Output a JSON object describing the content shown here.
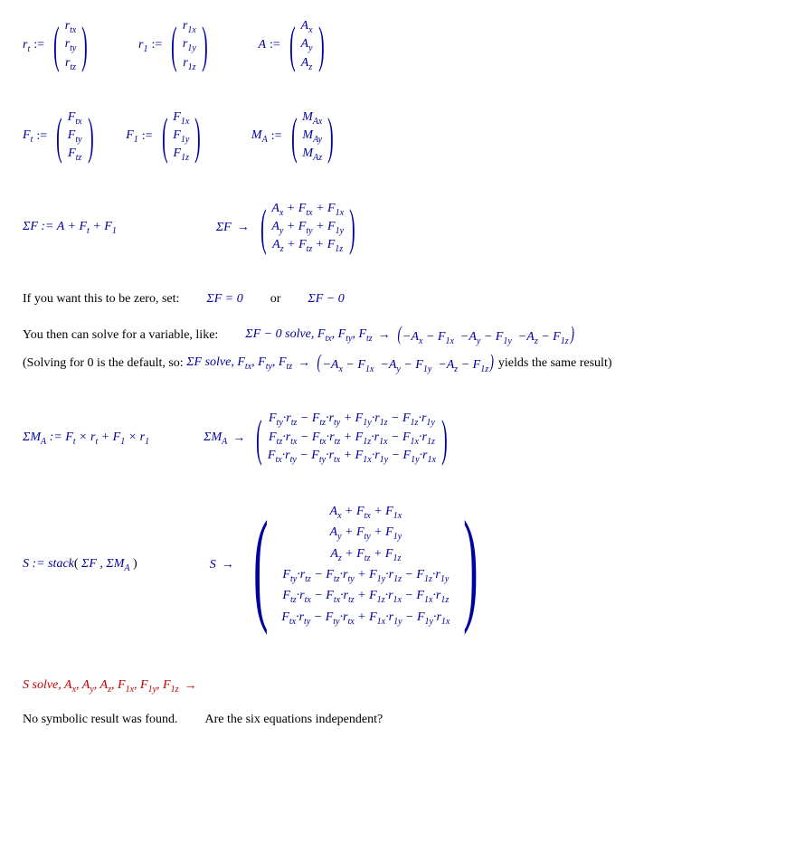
{
  "defs_row1": {
    "rt": {
      "lhs": "r",
      "lsub": "t",
      "rows": [
        "r<sub class='sub'>tx</sub>",
        "r<sub class='sub'>ty</sub>",
        "r<sub class='sub'>tz</sub>"
      ]
    },
    "r1": {
      "lhs": "r",
      "lsub": "1",
      "rows": [
        "r<sub class='sub'>1x</sub>",
        "r<sub class='sub'>1y</sub>",
        "r<sub class='sub'>1z</sub>"
      ]
    },
    "A": {
      "lhs": "A",
      "lsub": "",
      "rows": [
        "A<sub class='sub'>x</sub>",
        "A<sub class='sub'>y</sub>",
        "A<sub class='sub'>z</sub>"
      ]
    }
  },
  "defs_row2": {
    "Ft": {
      "lhs": "F",
      "lsub": "t",
      "rows": [
        "F<sub class='sub'>tx</sub>",
        "F<sub class='sub'>ty</sub>",
        "F<sub class='sub'>tz</sub>"
      ]
    },
    "F1": {
      "lhs": "F",
      "lsub": "1",
      "rows": [
        "F<sub class='sub'>1x</sub>",
        "F<sub class='sub'>1y</sub>",
        "F<sub class='sub'>1z</sub>"
      ]
    },
    "MA": {
      "lhs": "M",
      "lsub": "A",
      "rows": [
        "M<sub class='sub'>Ax</sub>",
        "M<sub class='sub'>Ay</sub>",
        "M<sub class='sub'>Az</sub>"
      ]
    }
  },
  "sumF": {
    "def": "ΣF := A + F<sub class='sub'>t</sub> + F<sub class='sub'>1</sub>",
    "result_lhs": "ΣF",
    "rows": [
      "A<sub class='sub'>x</sub> + F<sub class='sub'>tx</sub> + F<sub class='sub'>1x</sub>",
      "A<sub class='sub'>y</sub> + F<sub class='sub'>ty</sub> + F<sub class='sub'>1y</sub>",
      "A<sub class='sub'>z</sub> + F<sub class='sub'>tz</sub> + F<sub class='sub'>1z</sub>"
    ]
  },
  "zero_text": "If you want this to be zero, set:",
  "zero_eq": "ΣF = 0",
  "or_text": "or",
  "zero_alt": "ΣF − 0",
  "solve_intro": "You then can solve for a variable, like:",
  "solve_expr": "ΣF − 0 solve, F<sub class='sub'>tx</sub>, F<sub class='sub'>ty</sub>, F<sub class='sub'>tz</sub>",
  "solve_result": "−A<sub class='sub'>x</sub> − F<sub class='sub'>1x</sub>&nbsp;&nbsp;−A<sub class='sub'>y</sub> − F<sub class='sub'>1y</sub>&nbsp;&nbsp;−A<sub class='sub'>z</sub> − F<sub class='sub'>1z</sub>",
  "solve_paren_pre": "(Solving for 0 is the default, so:",
  "solve_expr2": "ΣF solve, F<sub class='sub'>tx</sub>, F<sub class='sub'>ty</sub>, F<sub class='sub'>tz</sub>",
  "solve_paren_post": "yields the same result)",
  "sumMA": {
    "def": "ΣM<sub class='sub'>A</sub> := F<sub class='sub'>t</sub> × r<sub class='sub'>t</sub> + F<sub class='sub'>1</sub> × r<sub class='sub'>1</sub>",
    "result_lhs": "ΣM<sub class='sub'>A</sub>",
    "rows": [
      "F<sub class='sub'>ty</sub>·r<sub class='sub'>tz</sub> − F<sub class='sub'>tz</sub>·r<sub class='sub'>ty</sub> + F<sub class='sub'>1y</sub>·r<sub class='sub'>1z</sub> − F<sub class='sub'>1z</sub>·r<sub class='sub'>1y</sub>",
      "F<sub class='sub'>tz</sub>·r<sub class='sub'>tx</sub> − F<sub class='sub'>tx</sub>·r<sub class='sub'>tz</sub> + F<sub class='sub'>1z</sub>·r<sub class='sub'>1x</sub> − F<sub class='sub'>1x</sub>·r<sub class='sub'>1z</sub>",
      "F<sub class='sub'>tx</sub>·r<sub class='sub'>ty</sub> − F<sub class='sub'>ty</sub>·r<sub class='sub'>tx</sub> + F<sub class='sub'>1x</sub>·r<sub class='sub'>1y</sub> − F<sub class='sub'>1y</sub>·r<sub class='sub'>1x</sub>"
    ]
  },
  "stack": {
    "def": "S := stack<span class='blk'>(</span> ΣF , ΣM<sub class='sub'>A</sub> <span class='blk'>)</span>",
    "result_lhs": "S",
    "rows": [
      "A<sub class='sub'>x</sub> + F<sub class='sub'>tx</sub> + F<sub class='sub'>1x</sub>",
      "A<sub class='sub'>y</sub> + F<sub class='sub'>ty</sub> + F<sub class='sub'>1y</sub>",
      "A<sub class='sub'>z</sub> + F<sub class='sub'>tz</sub> + F<sub class='sub'>1z</sub>",
      "F<sub class='sub'>ty</sub>·r<sub class='sub'>tz</sub> − F<sub class='sub'>tz</sub>·r<sub class='sub'>ty</sub> + F<sub class='sub'>1y</sub>·r<sub class='sub'>1z</sub> − F<sub class='sub'>1z</sub>·r<sub class='sub'>1y</sub>",
      "F<sub class='sub'>tz</sub>·r<sub class='sub'>tx</sub> − F<sub class='sub'>tx</sub>·r<sub class='sub'>tz</sub> + F<sub class='sub'>1z</sub>·r<sub class='sub'>1x</sub> − F<sub class='sub'>1x</sub>·r<sub class='sub'>1z</sub>",
      "F<sub class='sub'>tx</sub>·r<sub class='sub'>ty</sub> − F<sub class='sub'>ty</sub>·r<sub class='sub'>tx</sub> + F<sub class='sub'>1x</sub>·r<sub class='sub'>1y</sub> − F<sub class='sub'>1y</sub>·r<sub class='sub'>1x</sub>"
    ]
  },
  "final_solve": "S solve, A<sub class='sub'>x</sub>, A<sub class='sub'>y</sub>, A<sub class='sub'>z</sub>, F<sub class='sub'>1x</sub>, F<sub class='sub'>1y</sub>, F<sub class='sub'>1z</sub>",
  "no_result": "No symbolic result was found.",
  "question": "Are the six equations independent?",
  "colors": {
    "math": "#0000a0",
    "text": "#000000",
    "error": "#c00000",
    "background": "#ffffff"
  }
}
